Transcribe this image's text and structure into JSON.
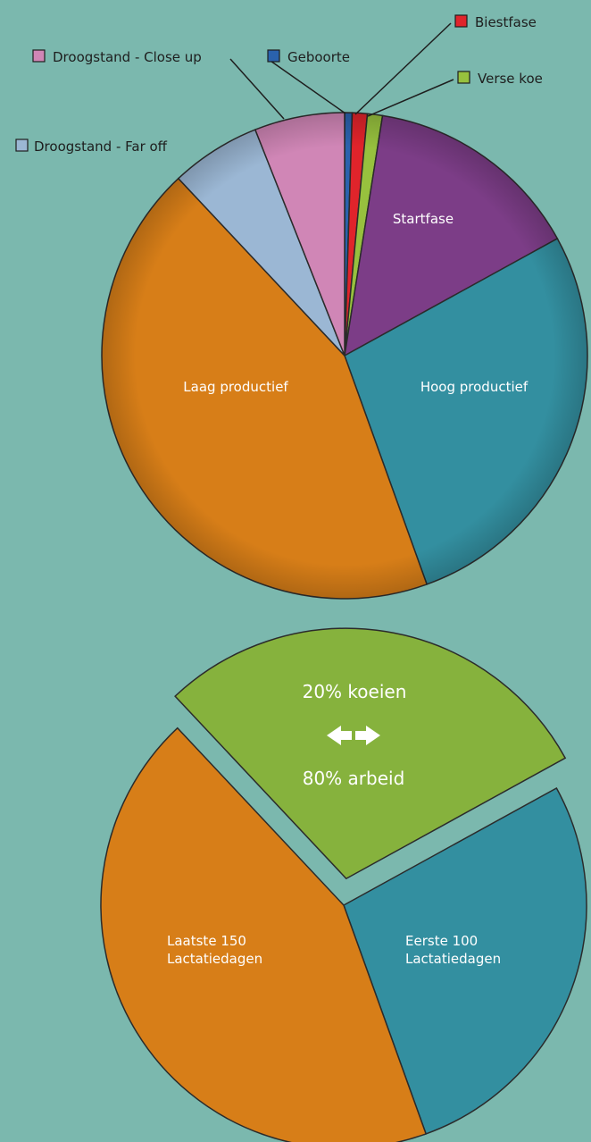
{
  "chart_data": [
    {
      "type": "pie",
      "title": "",
      "slices": [
        {
          "name": "Geboorte",
          "value": 0.5,
          "color": "#2a62ad",
          "label_position": "legend"
        },
        {
          "name": "Biestfase",
          "value": 1.0,
          "color": "#e0242b",
          "label_position": "legend"
        },
        {
          "name": "Verse koe",
          "value": 1.0,
          "color": "#97c13e",
          "label_position": "legend"
        },
        {
          "name": "Startfase",
          "value": 14.5,
          "color": "#7c3d87",
          "label_position": "inside"
        },
        {
          "name": "Hoog productief",
          "value": 27.5,
          "color": "#338fa0",
          "label_position": "inside"
        },
        {
          "name": "Laag productief",
          "value": 43.5,
          "color": "#d77e18",
          "label_position": "inside"
        },
        {
          "name": "Droogstand - Far off",
          "value": 6.0,
          "color": "#9bb7d4",
          "label_position": "legend"
        },
        {
          "name": "Droogstand - Close up",
          "value": 6.0,
          "color": "#d086b6",
          "label_position": "legend"
        }
      ]
    },
    {
      "type": "pie",
      "title": "",
      "slices": [
        {
          "name": "Eerste 100\nLactatiedagen",
          "lines": [
            "Eerste 100",
            "Lactatiedagen"
          ],
          "value": 27.5,
          "color": "#338fa0"
        },
        {
          "name": "Laatste 150\nLactatiedagen",
          "lines": [
            "Laatste 150",
            "Lactatiedagen"
          ],
          "value": 43.5,
          "color": "#d77e18"
        },
        {
          "name": "exploded",
          "value": 29.0,
          "color": "#86b23d",
          "exploded": true
        }
      ],
      "annotation": {
        "top": "20% koeien",
        "arrow": "double-arrow-icon",
        "bottom": "80% arbeid"
      }
    }
  ]
}
